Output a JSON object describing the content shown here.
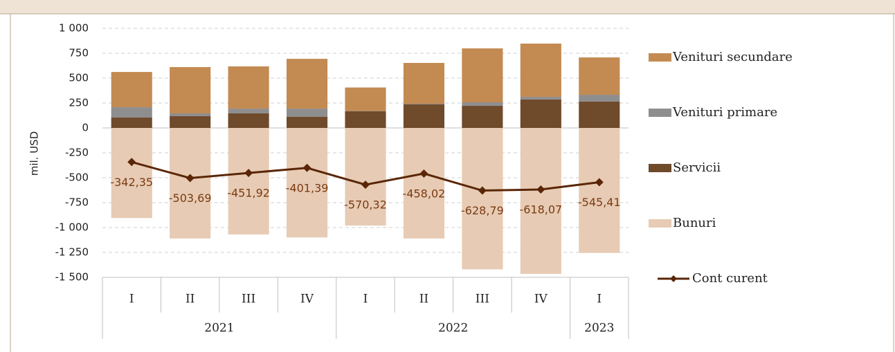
{
  "chart_data": {
    "type": "stacked-bar-line",
    "y_label": "mil. USD",
    "category_groups": [
      {
        "name": "2021",
        "categories": [
          "I",
          "II",
          "III",
          "IV"
        ]
      },
      {
        "name": "2022",
        "categories": [
          "I",
          "II",
          "III",
          "IV"
        ]
      },
      {
        "name": "2023",
        "categories": [
          "I"
        ]
      }
    ],
    "series": [
      {
        "name": "Venituri secundare",
        "type": "bar",
        "color": "#c38a52",
        "values": [
          354,
          465,
          424,
          500,
          236,
          410,
          542,
          535,
          375
        ]
      },
      {
        "name": "Venituri primare",
        "type": "bar",
        "color": "#8e8e8e",
        "values": [
          104,
          28,
          48,
          83,
          3,
          7,
          35,
          27,
          69
        ]
      },
      {
        "name": "Servicii",
        "type": "bar",
        "color": "#6f4a2b",
        "values": [
          104,
          118,
          146,
          111,
          167,
          236,
          222,
          285,
          264
        ]
      },
      {
        "name": "Bunuri",
        "type": "bar",
        "color": "#e7cbb4",
        "values": [
          -905,
          -1110,
          -1070,
          -1100,
          -980,
          -1110,
          -1420,
          -1465,
          -1255
        ]
      },
      {
        "name": "Cont curent",
        "type": "line",
        "color": "#5a2606",
        "label_color": "#7a3a12",
        "values": [
          -342.35,
          -503.69,
          -451.92,
          -401.39,
          -570.32,
          -458.02,
          -628.79,
          -618.07,
          -545.41
        ],
        "value_labels": [
          "-342,35",
          "-503,69",
          "-451,92",
          "-401,39",
          "-570,32",
          "-458,02",
          "-628,79",
          "-618,07",
          "-545,41"
        ]
      }
    ],
    "ylim": [
      -1500,
      1000
    ],
    "yticks": [
      {
        "value": -1500,
        "label": "-1 500"
      },
      {
        "value": -1250,
        "label": "-1 250"
      },
      {
        "value": -1000,
        "label": "-1 000"
      },
      -750,
      -500,
      -250,
      0,
      250,
      500,
      750,
      {
        "value": 1000,
        "label": "1 000"
      }
    ],
    "grid": true,
    "legend": "right"
  }
}
